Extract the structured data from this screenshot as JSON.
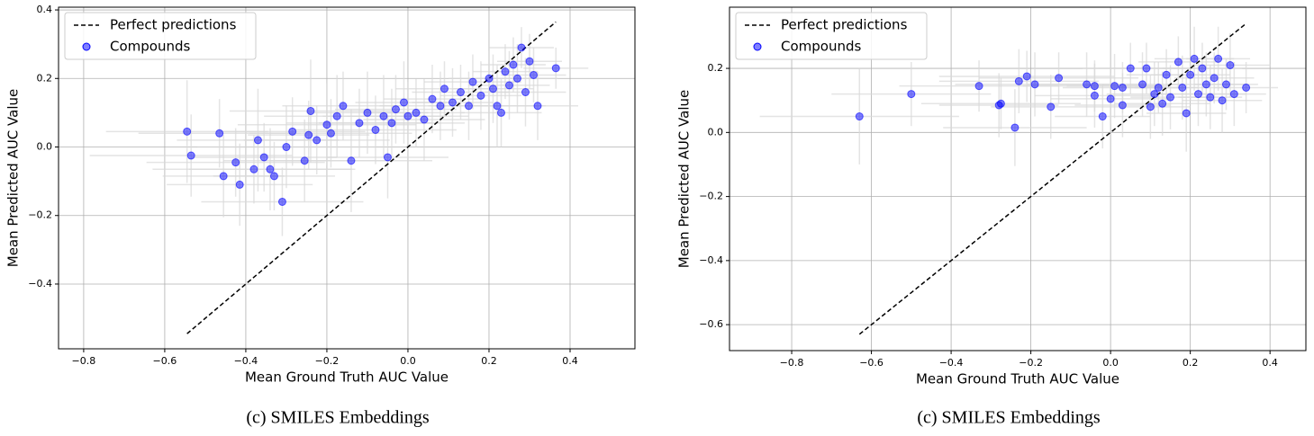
{
  "chart_data": [
    {
      "type": "scatter",
      "caption": "(c) SMILES Embeddings",
      "x_label": "Mean Ground Truth AUC Value",
      "y_label": "Mean Predicted AUC Value",
      "xlim": [
        -0.862,
        0.56
      ],
      "ylim": [
        -0.589,
        0.408
      ],
      "xticks": [
        {
          "value": -0.8,
          "label": "−0.8"
        },
        {
          "value": -0.6,
          "label": "−0.6"
        },
        {
          "value": -0.4,
          "label": "−0.4"
        },
        {
          "value": -0.2,
          "label": "−0.2"
        },
        {
          "value": 0,
          "label": "0.0"
        },
        0.2,
        0.4
      ],
      "yticks": [
        {
          "value": -0.4,
          "label": "−0.4"
        },
        {
          "value": -0.2,
          "label": "−0.2"
        },
        {
          "value": 0,
          "label": "0.0"
        },
        0.2,
        0.4
      ],
      "grid": true,
      "legend": "upper left",
      "series": [
        {
          "name": "Perfect predictions",
          "type": "line",
          "color": "#000000",
          "x": [
            -0.545,
            0.365
          ],
          "y": [
            -0.545,
            0.365
          ]
        },
        {
          "name": "Compounds",
          "type": "scatter",
          "color": "#0000ff",
          "error_color": "#d9d9d9",
          "x": [
            -0.545,
            -0.535,
            -0.465,
            -0.455,
            -0.425,
            -0.415,
            -0.38,
            -0.37,
            -0.355,
            -0.34,
            -0.33,
            -0.31,
            -0.3,
            -0.285,
            -0.255,
            -0.245,
            -0.24,
            -0.225,
            -0.2,
            -0.19,
            -0.175,
            -0.16,
            -0.14,
            -0.12,
            -0.1,
            -0.08,
            -0.06,
            -0.04,
            -0.03,
            -0.01,
            0.0,
            0.02,
            0.04,
            0.06,
            0.08,
            0.09,
            0.11,
            0.13,
            0.15,
            0.16,
            0.18,
            0.2,
            0.21,
            0.22,
            0.24,
            0.25,
            0.26,
            0.27,
            0.28,
            0.29,
            0.3,
            0.31,
            0.32,
            0.365,
            -0.05,
            0.23
          ],
          "y": [
            0.045,
            -0.025,
            0.04,
            -0.085,
            -0.045,
            -0.11,
            -0.065,
            0.02,
            -0.03,
            -0.065,
            -0.085,
            -0.16,
            0.0,
            0.045,
            -0.04,
            0.035,
            0.105,
            0.02,
            0.065,
            0.04,
            0.09,
            0.12,
            -0.04,
            0.07,
            0.1,
            0.05,
            0.09,
            0.07,
            0.11,
            0.13,
            0.09,
            0.1,
            0.08,
            0.14,
            0.12,
            0.17,
            0.13,
            0.16,
            0.12,
            0.19,
            0.15,
            0.2,
            0.17,
            0.12,
            0.22,
            0.18,
            0.24,
            0.2,
            0.29,
            0.16,
            0.25,
            0.21,
            0.12,
            0.23,
            -0.03,
            0.1
          ],
          "xerr": [
            0.2,
            0.25,
            0.2,
            0.15,
            0.22,
            0.18,
            0.25,
            0.2,
            0.18,
            0.2,
            0.15,
            0.2,
            0.22,
            0.18,
            0.2,
            0.15,
            0.2,
            0.18,
            0.22,
            0.2,
            0.18,
            0.15,
            0.2,
            0.18,
            0.15,
            0.2,
            0.15,
            0.18,
            0.15,
            0.12,
            0.15,
            0.12,
            0.15,
            0.12,
            0.15,
            0.12,
            0.1,
            0.12,
            0.1,
            0.12,
            0.1,
            0.1,
            0.1,
            0.12,
            0.08,
            0.1,
            0.08,
            0.1,
            0.08,
            0.1,
            0.08,
            0.08,
            0.1,
            0.08,
            0.15,
            0.1
          ],
          "yerr": [
            0.15,
            0.12,
            0.1,
            0.12,
            0.1,
            0.12,
            0.1,
            0.15,
            0.1,
            0.12,
            0.1,
            0.1,
            0.12,
            0.1,
            0.12,
            0.1,
            0.15,
            0.1,
            0.12,
            0.1,
            0.12,
            0.1,
            0.15,
            0.1,
            0.12,
            0.1,
            0.12,
            0.1,
            0.1,
            0.12,
            0.1,
            0.1,
            0.12,
            0.1,
            0.1,
            0.08,
            0.1,
            0.08,
            0.1,
            0.08,
            0.1,
            0.08,
            0.1,
            0.12,
            0.08,
            0.1,
            0.08,
            0.1,
            0.06,
            0.1,
            0.08,
            0.08,
            0.1,
            0.06,
            0.12,
            0.1
          ]
        }
      ]
    },
    {
      "type": "scatter",
      "caption": "(c) SMILES Embeddings",
      "x_label": "Mean Ground Truth AUC Value",
      "y_label": "Mean Predicted AUC Value",
      "xlim": [
        -0.956,
        0.49
      ],
      "ylim": [
        -0.681,
        0.391
      ],
      "xticks": [
        {
          "value": -0.8,
          "label": "−0.8"
        },
        {
          "value": -0.6,
          "label": "−0.6"
        },
        {
          "value": -0.4,
          "label": "−0.4"
        },
        {
          "value": -0.2,
          "label": "−0.2"
        },
        {
          "value": 0,
          "label": "0.0"
        },
        0.2,
        0.4
      ],
      "yticks": [
        {
          "value": -0.6,
          "label": "−0.6"
        },
        {
          "value": -0.4,
          "label": "−0.4"
        },
        {
          "value": -0.2,
          "label": "−0.2"
        },
        {
          "value": 0,
          "label": "0.0"
        },
        0.2
      ],
      "grid": true,
      "legend": "upper left",
      "series": [
        {
          "name": "Perfect predictions",
          "type": "line",
          "color": "#000000",
          "x": [
            -0.63,
            0.34
          ],
          "y": [
            -0.63,
            0.34
          ]
        },
        {
          "name": "Compounds",
          "type": "scatter",
          "color": "#0000ff",
          "error_color": "#d9d9d9",
          "x": [
            -0.63,
            -0.5,
            -0.33,
            -0.28,
            -0.275,
            -0.24,
            -0.23,
            -0.21,
            -0.19,
            -0.15,
            -0.13,
            -0.06,
            -0.04,
            -0.04,
            -0.02,
            0.0,
            0.01,
            0.03,
            0.03,
            0.05,
            0.08,
            0.09,
            0.1,
            0.11,
            0.12,
            0.13,
            0.14,
            0.15,
            0.17,
            0.18,
            0.19,
            0.2,
            0.21,
            0.22,
            0.23,
            0.24,
            0.25,
            0.26,
            0.27,
            0.28,
            0.29,
            0.3,
            0.31,
            0.34
          ],
          "y": [
            0.05,
            0.12,
            0.145,
            0.085,
            0.09,
            0.015,
            0.16,
            0.175,
            0.15,
            0.08,
            0.17,
            0.15,
            0.145,
            0.115,
            0.05,
            0.105,
            0.145,
            0.14,
            0.085,
            0.2,
            0.15,
            0.2,
            0.08,
            0.12,
            0.14,
            0.09,
            0.18,
            0.11,
            0.22,
            0.14,
            0.06,
            0.18,
            0.23,
            0.12,
            0.2,
            0.15,
            0.11,
            0.17,
            0.23,
            0.1,
            0.15,
            0.21,
            0.12,
            0.14
          ],
          "xerr": [
            0.25,
            0.2,
            0.2,
            0.15,
            0.2,
            0.18,
            0.2,
            0.22,
            0.2,
            0.15,
            0.2,
            0.15,
            0.18,
            0.15,
            0.12,
            0.15,
            0.12,
            0.15,
            0.12,
            0.12,
            0.1,
            0.12,
            0.1,
            0.12,
            0.1,
            0.12,
            0.1,
            0.1,
            0.1,
            0.12,
            0.1,
            0.1,
            0.1,
            0.12,
            0.1,
            0.1,
            0.08,
            0.1,
            0.08,
            0.1,
            0.08,
            0.1,
            0.08,
            0.08
          ],
          "yerr": [
            0.15,
            0.1,
            0.08,
            0.1,
            0.08,
            0.12,
            0.1,
            0.08,
            0.1,
            0.1,
            0.08,
            0.1,
            0.08,
            0.1,
            0.1,
            0.08,
            0.1,
            0.08,
            0.1,
            0.08,
            0.1,
            0.08,
            0.1,
            0.1,
            0.08,
            0.1,
            0.08,
            0.1,
            0.08,
            0.1,
            0.12,
            0.08,
            0.1,
            0.1,
            0.08,
            0.1,
            0.1,
            0.08,
            0.1,
            0.1,
            0.08,
            0.1,
            0.1,
            0.08
          ]
        }
      ]
    }
  ]
}
